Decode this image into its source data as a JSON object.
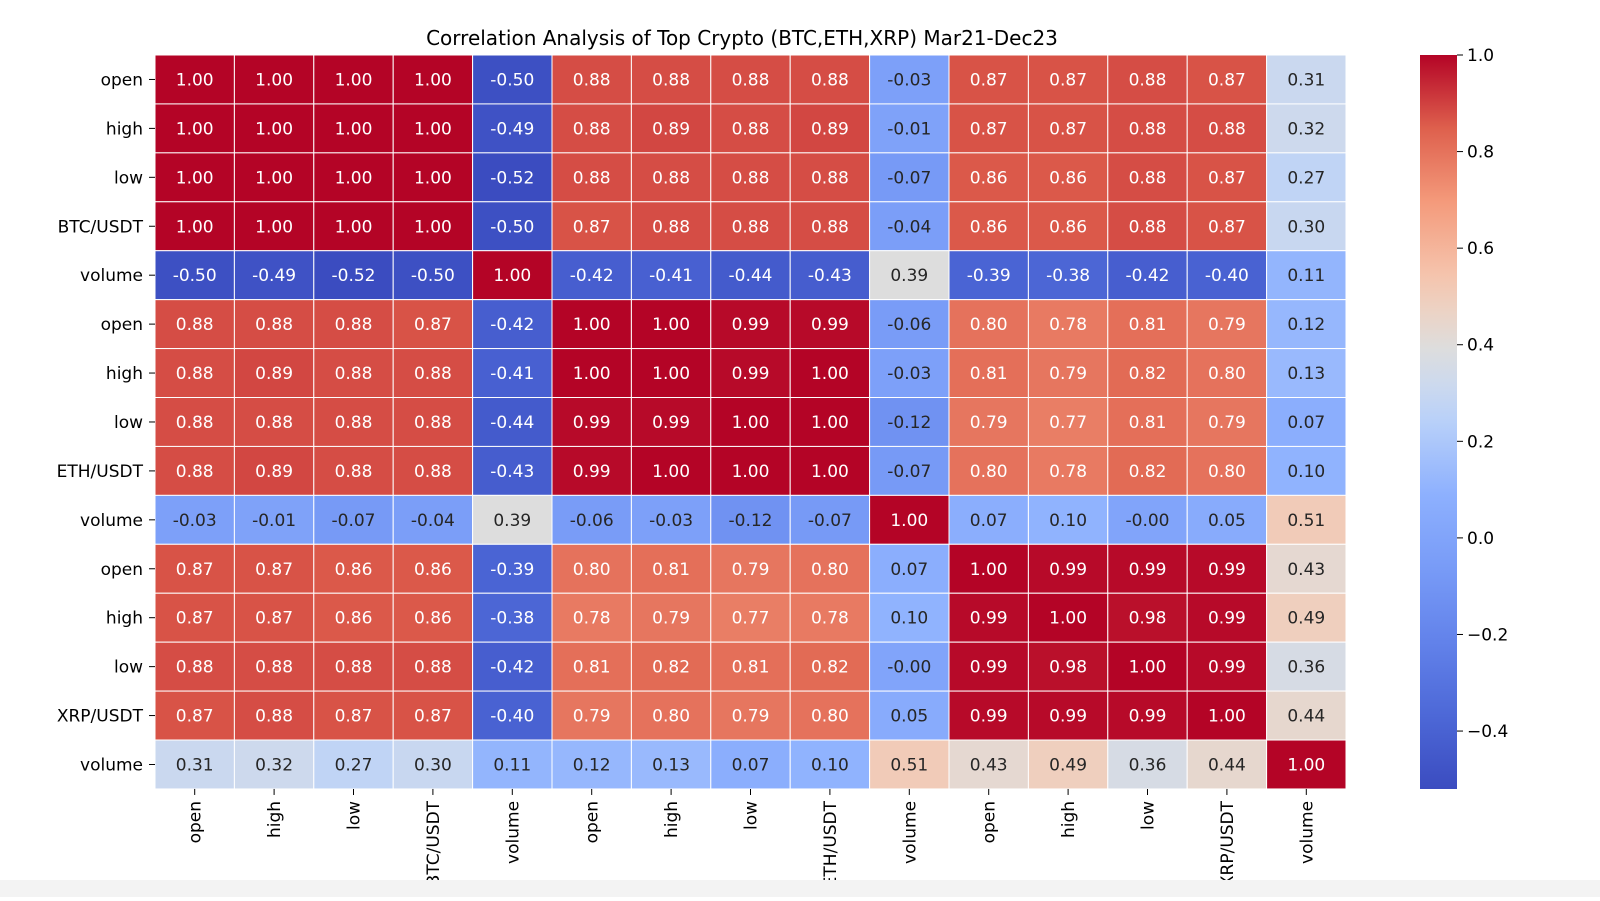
{
  "chart_data": {
    "type": "heatmap",
    "title": "Correlation Analysis of Top Crypto (BTC,ETH,XRP) Mar21-Dec23",
    "xlabel": "",
    "ylabel": "",
    "row_labels": [
      "open",
      "high",
      "low",
      "BTC/USDT",
      "volume",
      "open",
      "high",
      "low",
      "ETH/USDT",
      "volume",
      "open",
      "high",
      "low",
      "XRP/USDT",
      "volume"
    ],
    "col_labels": [
      "open",
      "high",
      "low",
      "BTC/USDT",
      "volume",
      "open",
      "high",
      "low",
      "ETH/USDT",
      "volume",
      "open",
      "high",
      "low",
      "XRP/USDT",
      "volume"
    ],
    "values": [
      [
        1.0,
        1.0,
        1.0,
        1.0,
        -0.5,
        0.88,
        0.88,
        0.88,
        0.88,
        -0.03,
        0.87,
        0.87,
        0.88,
        0.87,
        0.31
      ],
      [
        1.0,
        1.0,
        1.0,
        1.0,
        -0.49,
        0.88,
        0.89,
        0.88,
        0.89,
        -0.01,
        0.87,
        0.87,
        0.88,
        0.88,
        0.32
      ],
      [
        1.0,
        1.0,
        1.0,
        1.0,
        -0.52,
        0.88,
        0.88,
        0.88,
        0.88,
        -0.07,
        0.86,
        0.86,
        0.88,
        0.87,
        0.27
      ],
      [
        1.0,
        1.0,
        1.0,
        1.0,
        -0.5,
        0.87,
        0.88,
        0.88,
        0.88,
        -0.04,
        0.86,
        0.86,
        0.88,
        0.87,
        0.3
      ],
      [
        -0.5,
        -0.49,
        -0.52,
        -0.5,
        1.0,
        -0.42,
        -0.41,
        -0.44,
        -0.43,
        0.39,
        -0.39,
        -0.38,
        -0.42,
        -0.4,
        0.11
      ],
      [
        0.88,
        0.88,
        0.88,
        0.87,
        -0.42,
        1.0,
        1.0,
        0.99,
        0.99,
        -0.06,
        0.8,
        0.78,
        0.81,
        0.79,
        0.12
      ],
      [
        0.88,
        0.89,
        0.88,
        0.88,
        -0.41,
        1.0,
        1.0,
        0.99,
        1.0,
        -0.03,
        0.81,
        0.79,
        0.82,
        0.8,
        0.13
      ],
      [
        0.88,
        0.88,
        0.88,
        0.88,
        -0.44,
        0.99,
        0.99,
        1.0,
        1.0,
        -0.12,
        0.79,
        0.77,
        0.81,
        0.79,
        0.07
      ],
      [
        0.88,
        0.89,
        0.88,
        0.88,
        -0.43,
        0.99,
        1.0,
        1.0,
        1.0,
        -0.07,
        0.8,
        0.78,
        0.82,
        0.8,
        0.1
      ],
      [
        -0.03,
        -0.01,
        -0.07,
        -0.04,
        0.39,
        -0.06,
        -0.03,
        -0.12,
        -0.07,
        1.0,
        0.07,
        0.1,
        -0.0,
        0.05,
        0.51
      ],
      [
        0.87,
        0.87,
        0.86,
        0.86,
        -0.39,
        0.8,
        0.81,
        0.79,
        0.8,
        0.07,
        1.0,
        0.99,
        0.99,
        0.99,
        0.43
      ],
      [
        0.87,
        0.87,
        0.86,
        0.86,
        -0.38,
        0.78,
        0.79,
        0.77,
        0.78,
        0.1,
        0.99,
        1.0,
        0.98,
        0.99,
        0.49
      ],
      [
        0.88,
        0.88,
        0.88,
        0.88,
        -0.42,
        0.81,
        0.82,
        0.81,
        0.82,
        -0.0,
        0.99,
        0.98,
        1.0,
        0.99,
        0.36
      ],
      [
        0.87,
        0.88,
        0.87,
        0.87,
        -0.4,
        0.79,
        0.8,
        0.79,
        0.8,
        0.05,
        0.99,
        0.99,
        0.99,
        1.0,
        0.44
      ],
      [
        0.31,
        0.32,
        0.27,
        0.3,
        0.11,
        0.12,
        0.13,
        0.07,
        0.1,
        0.51,
        0.43,
        0.49,
        0.36,
        0.44,
        1.0
      ]
    ],
    "value_format": "2 decimals",
    "colormap": "coolwarm",
    "vmin": -0.52,
    "vmax": 1.0,
    "colorbar": {
      "ticks": [
        1.0,
        0.8,
        0.6,
        0.4,
        0.2,
        0.0,
        -0.2,
        -0.4
      ],
      "tick_labels": [
        "1.0",
        "0.8",
        "0.6",
        "0.4",
        "0.2",
        "0.0",
        "−0.2",
        "−0.4"
      ]
    },
    "grid": false,
    "cell_borders": "white",
    "legend": "colorbar-right"
  }
}
